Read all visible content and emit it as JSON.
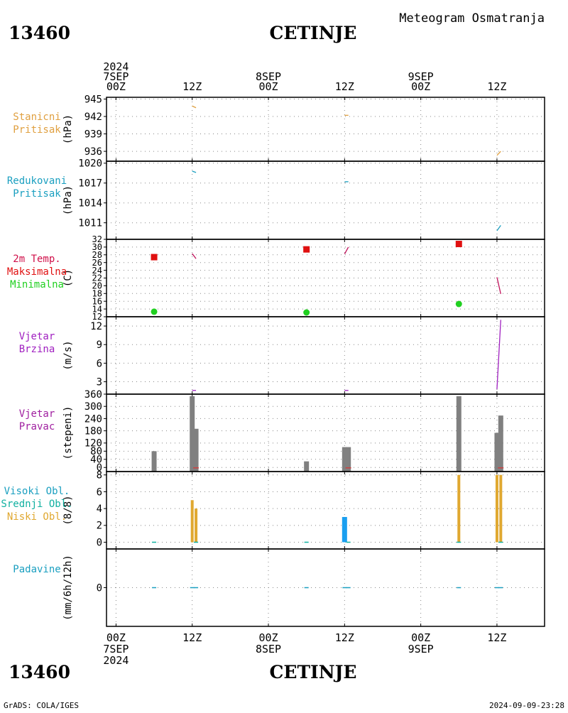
{
  "header": {
    "station_id": "13460",
    "station_name": "CETINJE",
    "subtitle": "Meteogram Osmatranja"
  },
  "footer": {
    "credit": "GrADS: COLA/IGES",
    "timestamp": "2024-09-09-23:28"
  },
  "time_axis": {
    "top_labels": [
      {
        "lines": [
          "2024",
          "7SEP",
          "00Z"
        ]
      },
      {
        "lines": [
          "12Z"
        ]
      },
      {
        "lines": [
          "8SEP",
          "00Z"
        ]
      },
      {
        "lines": [
          "12Z"
        ]
      },
      {
        "lines": [
          "9SEP",
          "00Z"
        ]
      },
      {
        "lines": [
          "12Z"
        ]
      }
    ],
    "bottom_labels": [
      {
        "lines": [
          "00Z",
          "7SEP",
          "2024"
        ]
      },
      {
        "lines": [
          "12Z"
        ]
      },
      {
        "lines": [
          "00Z",
          "8SEP"
        ]
      },
      {
        "lines": [
          "12Z"
        ]
      },
      {
        "lines": [
          "00Z",
          "9SEP"
        ]
      },
      {
        "lines": [
          "12Z"
        ]
      }
    ],
    "tick_hours": [
      0,
      12,
      24,
      36,
      48,
      60
    ],
    "range_hours": [
      -1.5,
      67.5
    ]
  },
  "colors": {
    "station_pressure": "#e0a040",
    "reduced_pressure": "#1a9fc0",
    "tmax": "#e01010",
    "tmin": "#20d020",
    "temp_line": "#c0105a",
    "wind_speed": "#a020c0",
    "wind_dir_bar": "#808080",
    "wind_dir_label": "#a020a0",
    "cloud_high": "#1a9fc0",
    "cloud_mid": "#10b0a0",
    "cloud_low": "#e0a830",
    "precip": "#1a9fc0",
    "temp_label": "#d0104a"
  },
  "chart_data": [
    {
      "type": "line",
      "name": "station-pressure",
      "label_lines": [
        "Stanicni",
        "Pritisak"
      ],
      "unit": "(hPa)",
      "yticks": [
        936,
        939,
        942,
        945
      ],
      "ylim": [
        934.3,
        945.3
      ],
      "series": [
        {
          "points": [
            [
              12,
              943.8
            ],
            [
              12.6,
              943.5
            ]
          ]
        },
        {
          "points": [
            [
              36,
              942.2
            ],
            [
              36.6,
              942.2
            ]
          ]
        },
        {
          "points": [
            [
              60,
              935.3
            ],
            [
              60.6,
              936.0
            ]
          ]
        }
      ]
    },
    {
      "type": "line",
      "name": "reduced-pressure",
      "label_lines": [
        "Redukovani",
        "Pritisak"
      ],
      "unit": "(hPa)",
      "yticks": [
        1011,
        1014,
        1017,
        1020
      ],
      "ylim": [
        1008.5,
        1020.3
      ],
      "series": [
        {
          "points": [
            [
              12,
              1018.8
            ],
            [
              12.6,
              1018.6
            ]
          ]
        },
        {
          "points": [
            [
              36,
              1017.2
            ],
            [
              36.6,
              1017.2
            ]
          ]
        },
        {
          "points": [
            [
              60,
              1009.8
            ],
            [
              60.6,
              1010.6
            ]
          ]
        }
      ]
    },
    {
      "type": "scatter",
      "name": "temperature",
      "label_lines": [
        "2m Temp.",
        "Maksimalna",
        "Minimalna"
      ],
      "unit": "(C)",
      "yticks": [
        12,
        14,
        16,
        18,
        20,
        22,
        24,
        26,
        28,
        30,
        32
      ],
      "ylim": [
        12,
        32
      ],
      "tmax": [
        [
          6,
          27.4
        ],
        [
          30,
          29.4
        ],
        [
          54,
          30.8
        ]
      ],
      "tmin": [
        [
          6,
          13.3
        ],
        [
          30,
          13.1
        ],
        [
          54,
          15.3
        ]
      ],
      "series": [
        {
          "points": [
            [
              12,
              28.3
            ],
            [
              12.6,
              27.0
            ]
          ]
        },
        {
          "points": [
            [
              36,
              28.2
            ],
            [
              36.6,
              30.0
            ]
          ]
        },
        {
          "points": [
            [
              60,
              22.2
            ],
            [
              60.6,
              17.9
            ]
          ]
        }
      ]
    },
    {
      "type": "line",
      "name": "wind-speed",
      "label_lines": [
        "Vjetar",
        "Brzina"
      ],
      "unit": "(m/s)",
      "yticks": [
        3,
        6,
        9,
        12
      ],
      "ylim": [
        1,
        13.5
      ],
      "series": [
        {
          "points": [
            [
              12,
              1.6
            ],
            [
              12.6,
              1.6
            ]
          ]
        },
        {
          "points": [
            [
              36,
              1.6
            ],
            [
              36.6,
              1.6
            ]
          ]
        },
        {
          "points": [
            [
              60,
              1.8
            ],
            [
              60.6,
              13.0
            ]
          ]
        }
      ]
    },
    {
      "type": "bar",
      "name": "wind-direction",
      "label_lines": [
        "Vjetar",
        "Pravac"
      ],
      "unit": "(stepeni)",
      "yticks": [
        0,
        40,
        80,
        120,
        180,
        240,
        300,
        360
      ],
      "ylim": [
        -20,
        360
      ],
      "bars": [
        [
          6,
          80
        ],
        [
          12,
          350
        ],
        [
          12.6,
          190
        ],
        [
          30,
          30
        ],
        [
          36,
          100
        ],
        [
          36.6,
          100
        ],
        [
          54,
          350
        ],
        [
          60,
          170
        ],
        [
          60.6,
          255
        ]
      ]
    },
    {
      "type": "bar",
      "name": "cloud-cover",
      "label_lines": [
        "Visoki Obl.",
        "Srednji Obl.",
        "Niski Obl."
      ],
      "unit": "(8/8)",
      "yticks": [
        0,
        2,
        4,
        6,
        8
      ],
      "ylim": [
        -0.8,
        8.4
      ],
      "low": [
        [
          12,
          5
        ],
        [
          12.6,
          4
        ],
        [
          54,
          8
        ],
        [
          60,
          8
        ],
        [
          60.6,
          8
        ]
      ],
      "high": [
        [
          36,
          3
        ]
      ]
    },
    {
      "type": "line",
      "name": "precipitation",
      "label_lines": [
        "Padavine"
      ],
      "unit": "(mm/6h/12h)",
      "yticks": [
        0
      ],
      "ylim": [
        -5,
        5
      ],
      "marks": [
        6,
        12,
        12.6,
        30,
        36,
        36.6,
        54,
        60,
        60.6
      ]
    }
  ]
}
